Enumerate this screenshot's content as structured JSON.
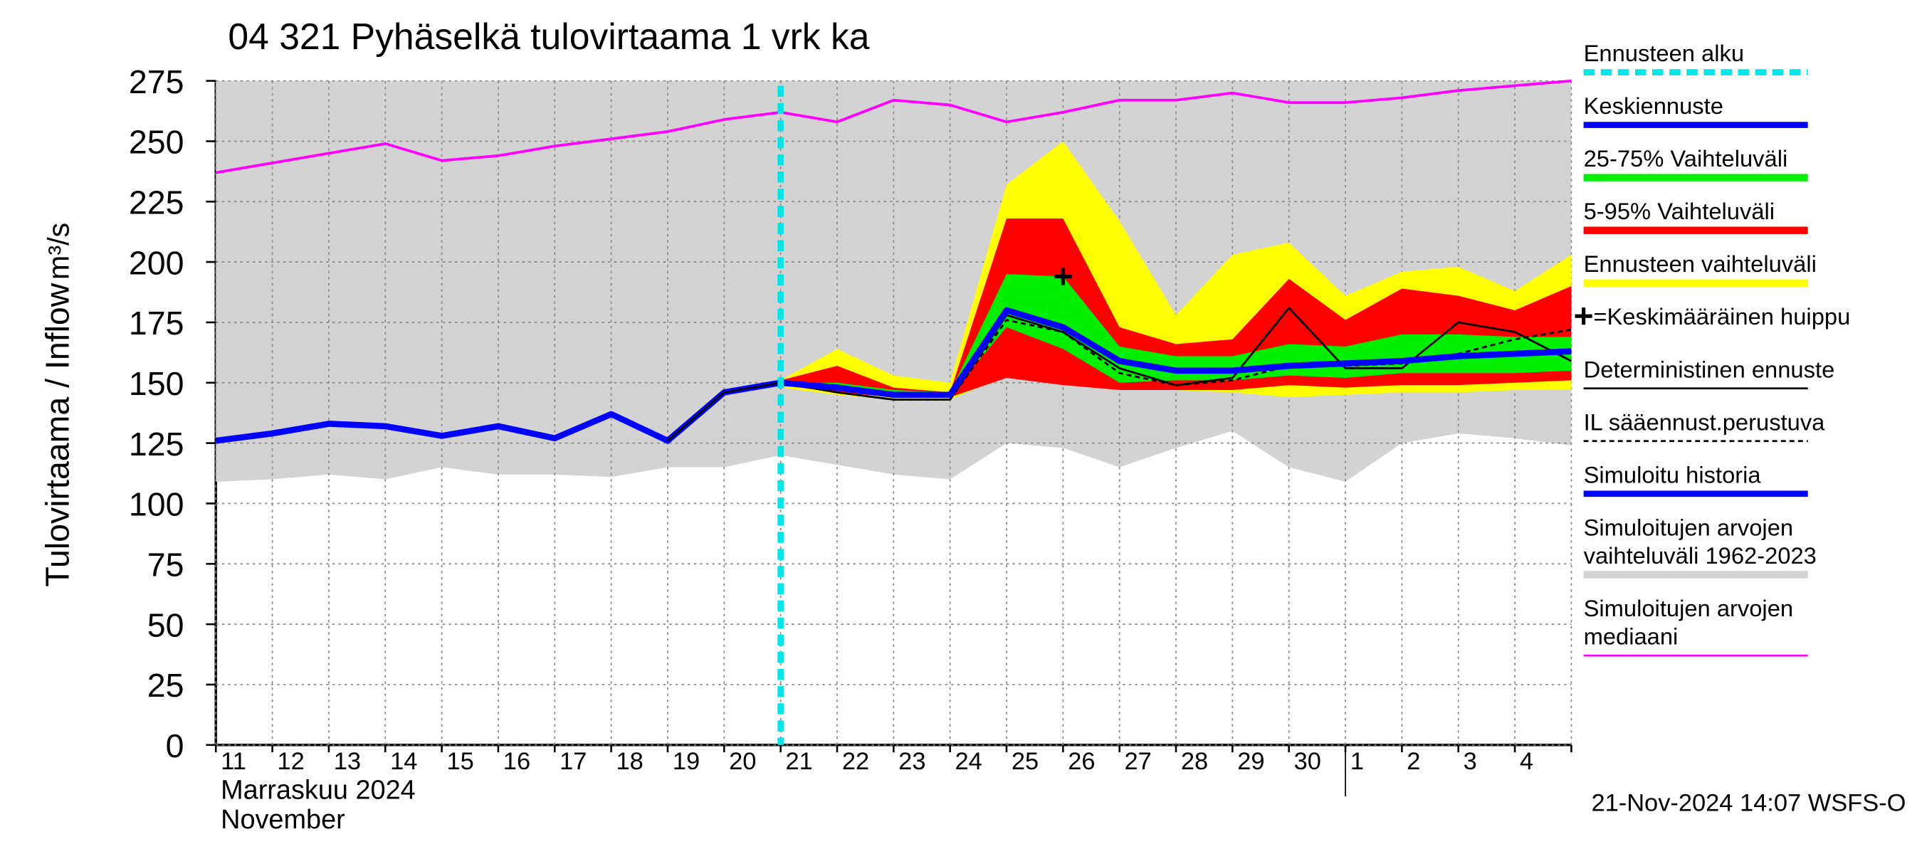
{
  "chart_data": {
    "type": "line",
    "title": "04 321 Pyhäselkä tulovirtaama 1 vrk ka",
    "y_label": "Tulovirtaama / Inflow",
    "y_unit": "m³/s",
    "x_label": [
      "Marraskuu 2024",
      "November"
    ],
    "footer": "21-Nov-2024 14:07 WSFS-O",
    "categories": [
      "11",
      "12",
      "13",
      "14",
      "15",
      "16",
      "17",
      "18",
      "19",
      "20",
      "21",
      "22",
      "23",
      "24",
      "25",
      "26",
      "27",
      "28",
      "29",
      "30",
      "1",
      "2",
      "3",
      "4",
      null
    ],
    "month_break_category": "1",
    "ylim": [
      0,
      275
    ],
    "yticks": [
      0,
      25,
      50,
      75,
      100,
      125,
      150,
      175,
      200,
      225,
      250,
      275
    ],
    "grid": true,
    "forecast_start": {
      "name": "Ennusteen alku",
      "color": "#00e5e5",
      "category": "21"
    },
    "series": [
      {
        "name": "Keskiennuste",
        "kind": "line",
        "color": "#0000ff",
        "width": 5,
        "values": [
          null,
          null,
          null,
          null,
          null,
          null,
          null,
          null,
          null,
          null,
          150,
          148,
          145,
          145,
          180,
          173,
          159,
          155,
          155,
          157,
          158,
          159,
          161,
          162,
          163
        ]
      },
      {
        "name": "25-75% Vaihteluväli",
        "kind": "band",
        "color": "#00ee00",
        "lower": [
          null,
          null,
          null,
          null,
          null,
          null,
          null,
          null,
          null,
          null,
          150,
          147,
          145,
          145,
          173,
          164,
          150,
          151,
          151,
          153,
          152,
          154,
          154,
          154,
          155
        ],
        "upper": [
          null,
          null,
          null,
          null,
          null,
          null,
          null,
          null,
          null,
          null,
          150,
          150,
          147,
          146,
          195,
          194,
          165,
          161,
          161,
          166,
          165,
          170,
          170,
          169,
          169
        ]
      },
      {
        "name": "5-95% Vaihteluväli",
        "kind": "band",
        "color": "#ff0000",
        "lower": [
          null,
          null,
          null,
          null,
          null,
          null,
          null,
          null,
          null,
          null,
          149,
          146,
          144,
          144,
          152,
          149,
          147,
          147,
          147,
          149,
          148,
          149,
          149,
          150,
          151
        ],
        "upper": [
          null,
          null,
          null,
          null,
          null,
          null,
          null,
          null,
          null,
          null,
          151,
          157,
          148,
          146,
          218,
          218,
          173,
          166,
          168,
          193,
          176,
          189,
          186,
          180,
          190
        ]
      },
      {
        "name": "Ennusteen vaihteluväli",
        "kind": "band",
        "color": "#ffff00",
        "lower": [
          null,
          null,
          null,
          null,
          null,
          null,
          null,
          null,
          null,
          null,
          148,
          145,
          143,
          143,
          153,
          150,
          147,
          147,
          146,
          144,
          145,
          146,
          146,
          147,
          147
        ],
        "upper": [
          null,
          null,
          null,
          null,
          null,
          null,
          null,
          null,
          null,
          null,
          151,
          164,
          153,
          150,
          232,
          250,
          217,
          178,
          203,
          208,
          186,
          196,
          198,
          188,
          203
        ]
      },
      {
        "name": "=Keskimääräinen huippu",
        "kind": "marker",
        "color": "#000000",
        "values": [
          null,
          null,
          null,
          null,
          null,
          null,
          null,
          null,
          null,
          null,
          null,
          null,
          null,
          null,
          null,
          194,
          null,
          null,
          null,
          null,
          null,
          null,
          null,
          null,
          null
        ]
      },
      {
        "name": "Deterministinen ennuste",
        "kind": "line",
        "color": "#000000",
        "width": 1.6,
        "values": [
          null,
          null,
          null,
          null,
          null,
          null,
          null,
          null,
          126,
          146,
          150,
          146,
          143,
          143,
          178,
          171,
          156,
          149,
          152,
          181,
          156,
          156,
          175,
          171,
          159
        ]
      },
      {
        "name": "IL sääennust.perustuva",
        "kind": "line",
        "color": "#000000",
        "width": 1.6,
        "dashed": true,
        "values": [
          null,
          null,
          null,
          null,
          null,
          null,
          null,
          null,
          null,
          null,
          150,
          146,
          143,
          143,
          176,
          171,
          154,
          149,
          151,
          157,
          157,
          158,
          162,
          168,
          172
        ]
      },
      {
        "name": "Simuloitu historia",
        "kind": "line",
        "color": "#0000ff",
        "width": 5,
        "values": [
          126,
          129,
          133,
          132,
          128,
          132,
          127,
          137,
          126,
          146,
          150,
          null,
          null,
          null,
          null,
          null,
          null,
          null,
          null,
          null,
          null,
          null,
          null,
          null,
          null
        ]
      },
      {
        "name": "Simuloitujen arvojen vaihteluväli 1962-2023",
        "kind": "band",
        "color": "#d3d3d3",
        "lower": [
          109,
          110,
          112,
          110,
          115,
          112,
          112,
          111,
          115,
          115,
          120,
          116,
          112,
          110,
          125,
          123,
          115,
          123,
          130,
          115,
          109,
          125,
          129,
          127,
          124
        ],
        "upper": [
          275,
          275,
          275,
          275,
          275,
          275,
          275,
          275,
          275,
          275,
          275,
          275,
          275,
          275,
          275,
          275,
          275,
          275,
          275,
          275,
          275,
          275,
          275,
          275,
          275
        ]
      },
      {
        "name": "Simuloitujen arvojen mediaani",
        "kind": "line",
        "color": "#ff00ff",
        "width": 2.2,
        "values": [
          237,
          241,
          245,
          249,
          242,
          244,
          248,
          251,
          254,
          259,
          262,
          258,
          267,
          265,
          258,
          262,
          267,
          267,
          270,
          266,
          266,
          268,
          271,
          273,
          275
        ]
      }
    ]
  }
}
